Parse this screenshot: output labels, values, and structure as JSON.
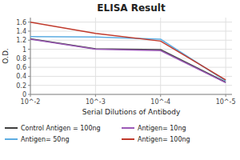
{
  "chart_data": {
    "type": "line",
    "title": "ELISA Result",
    "x_label": "Serial Dilutions of Antibody",
    "y_label": "O.D.",
    "x": [
      0.01,
      0.001,
      0.0001,
      1e-05
    ],
    "series": [
      {
        "name": "Control Antigen = 100ng",
        "color": "#404040",
        "values": [
          1.23,
          1.01,
          0.99,
          0.27
        ]
      },
      {
        "name": "Antigen= 10ng",
        "color": "#9B59B6",
        "values": [
          1.22,
          1.0,
          0.97,
          0.26
        ]
      },
      {
        "name": "Antigen= 50ng",
        "color": "#5DADE2",
        "values": [
          1.28,
          1.27,
          1.22,
          0.3
        ]
      },
      {
        "name": "Antigen= 100ng",
        "color": "#C0392B",
        "values": [
          1.6,
          1.35,
          1.18,
          0.32
        ]
      }
    ],
    "log": "x",
    "xlim": [
      0.01,
      8e-06
    ],
    "xticks": [
      {
        "value": 0.01,
        "label": "10^-2"
      },
      {
        "value": 0.001,
        "label": "10^-3"
      },
      {
        "value": 0.0001,
        "label": "10^-4"
      },
      {
        "value": 1e-05,
        "label": "10^-5"
      }
    ],
    "ylim": [
      0,
      1.7
    ],
    "yticks": [
      0,
      0.2,
      0.4,
      0.6,
      0.8,
      1,
      1.2,
      1.4,
      1.6
    ],
    "grid": true,
    "legend": "bottom"
  }
}
